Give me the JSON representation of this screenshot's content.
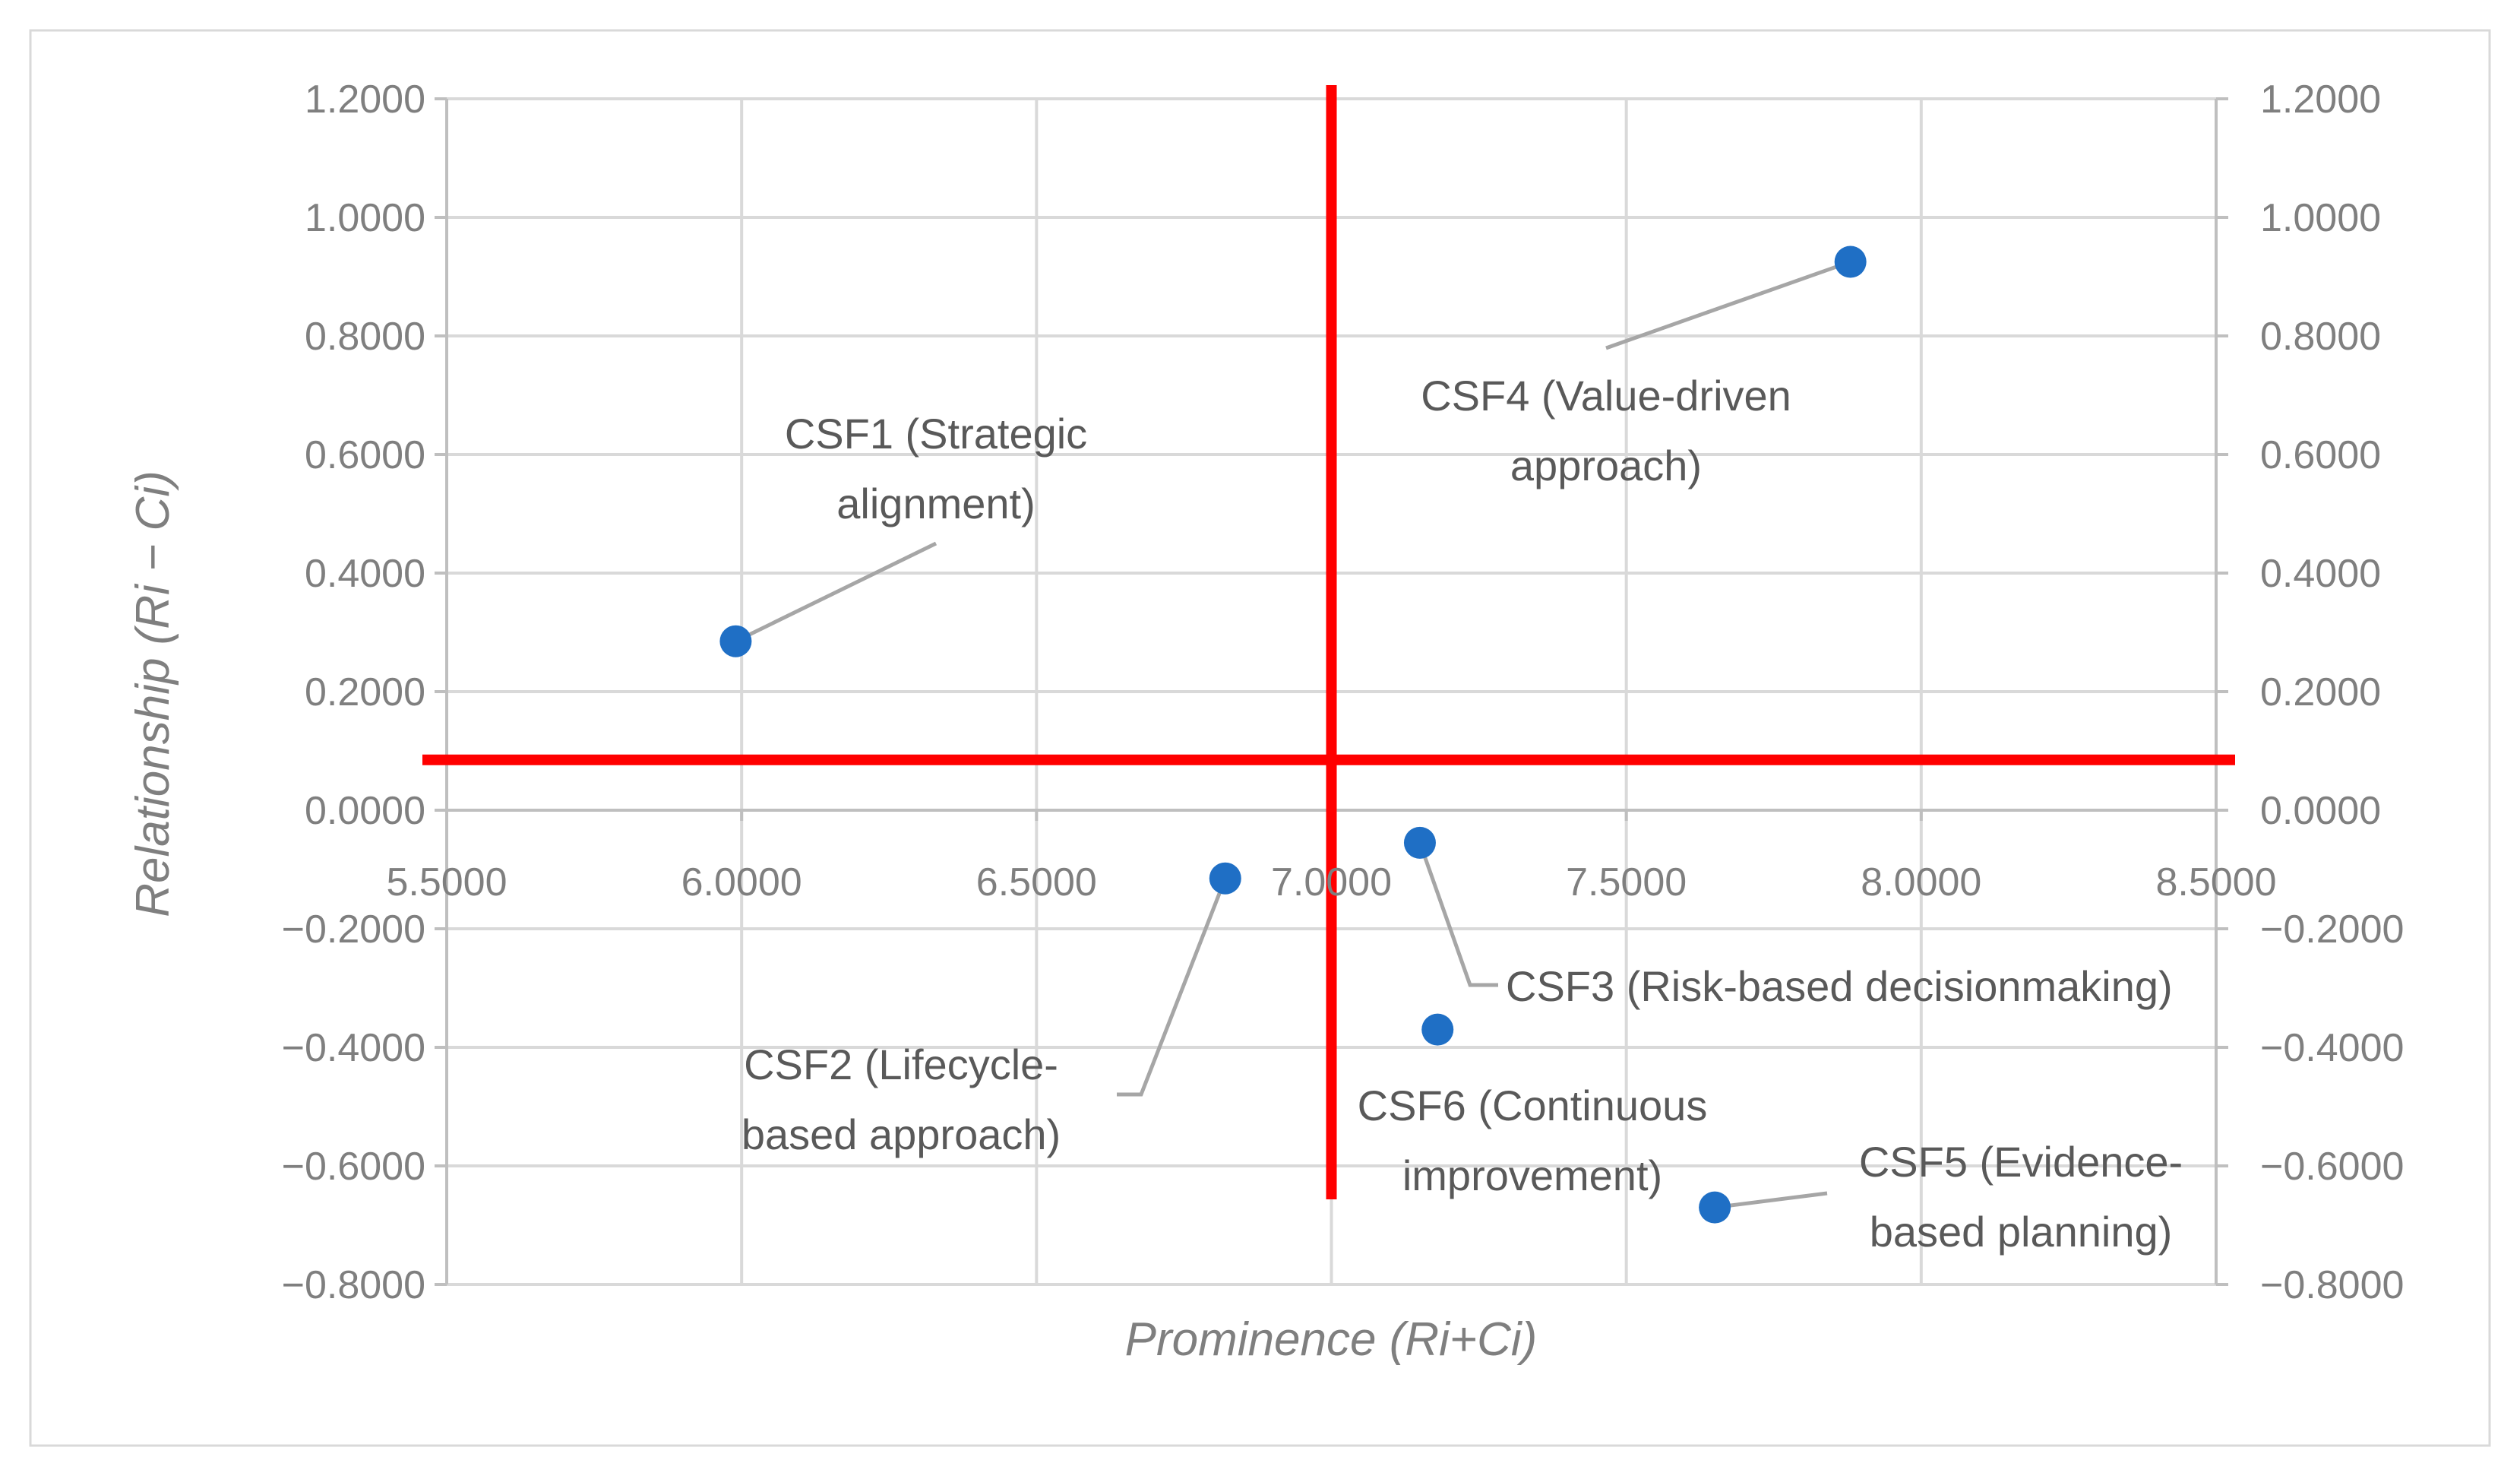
{
  "chart_data": {
    "type": "scatter",
    "xlabel": "Prominence (Ri+Ci)",
    "ylabel": "Relationship (Ri − Ci)",
    "xlim": [
      5.5,
      8.5
    ],
    "ylim": [
      -0.8,
      1.2
    ],
    "x_ticks": [
      "5.5000",
      "6.0000",
      "6.5000",
      "7.0000",
      "7.5000",
      "8.0000",
      "8.5000"
    ],
    "y_ticks": [
      "1.2000",
      "1.0000",
      "0.8000",
      "0.6000",
      "0.4000",
      "0.2000",
      "0.0000",
      "−0.2000",
      "−0.4000",
      "−0.6000",
      "−0.8000"
    ],
    "grid": true,
    "points": [
      {
        "label_lines": [
          "CSF1 (Strategic",
          "alignment)"
        ],
        "x": 5.99,
        "y": 0.285
      },
      {
        "label_lines": [
          "CSF2 (Lifecycle-",
          "based approach)"
        ],
        "x": 6.82,
        "y": -0.115
      },
      {
        "label_lines": [
          "CSF3 (Risk-based decisionmaking)"
        ],
        "x": 7.15,
        "y": -0.055
      },
      {
        "label_lines": [
          "CSF4 (Value-driven",
          "approach)"
        ],
        "x": 7.88,
        "y": 0.925
      },
      {
        "label_lines": [
          "CSF5 (Evidence-",
          "based planning)"
        ],
        "x": 7.65,
        "y": -0.67
      },
      {
        "label_lines": [
          "CSF6 (Continuous",
          "improvement)"
        ],
        "x": 7.18,
        "y": -0.37
      }
    ],
    "threshold_x": 7.0,
    "threshold_y": 0.085,
    "colors": {
      "point": "#1f6fc5",
      "threshold": "#ff0000",
      "grid": "#d9d9d9",
      "leader": "#a6a6a6",
      "axis": "#bfbfbf",
      "border": "#d9d9d9"
    }
  }
}
